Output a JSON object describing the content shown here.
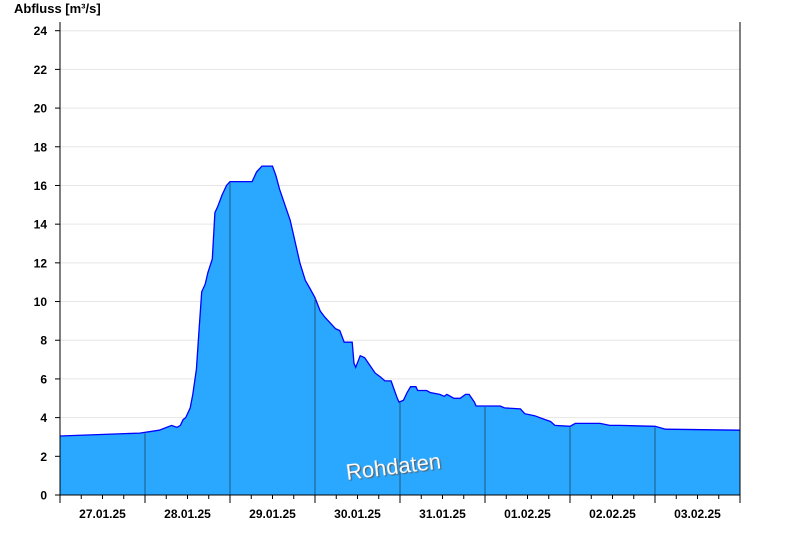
{
  "chart_data": {
    "type": "area",
    "ylabel": "Abfluss [m³/s]",
    "ylim": [
      0,
      24.45
    ],
    "yticks": [
      0,
      2,
      4,
      6,
      8,
      10,
      12,
      14,
      16,
      18,
      20,
      22,
      24
    ],
    "xlim": [
      "2025-01-27T00:00",
      "2025-02-04T00:00"
    ],
    "xtick_labels": [
      "27.01.25",
      "28.01.25",
      "29.01.25",
      "30.01.25",
      "31.01.25",
      "01.02.25",
      "02.02.25",
      "03.02.25"
    ],
    "grid": "horizontal",
    "watermark": "Rohdaten",
    "colors": {
      "fill": "#2aa8ff",
      "line": "#0000ff",
      "grid": "#e6e6e6",
      "day_line": "#1f5a80"
    },
    "x": [
      "2025-01-27T00:00",
      "2025-01-27T22:30",
      "2025-01-28T04:00",
      "2025-01-28T07:30",
      "2025-01-28T09:00",
      "2025-01-28T10:00",
      "2025-01-28T10:45",
      "2025-01-28T11:30",
      "2025-01-28T12:45",
      "2025-01-28T13:30",
      "2025-01-28T14:30",
      "2025-01-28T15:15",
      "2025-01-28T16:00",
      "2025-01-28T17:00",
      "2025-01-28T17:45",
      "2025-01-28T19:00",
      "2025-01-28T19:45",
      "2025-01-28T20:30",
      "2025-01-28T21:45",
      "2025-01-28T23:00",
      "2025-01-29T00:00",
      "2025-01-29T06:15",
      "2025-01-29T07:30",
      "2025-01-29T09:00",
      "2025-01-29T12:00",
      "2025-01-29T13:00",
      "2025-01-29T14:00",
      "2025-01-29T15:30",
      "2025-01-29T17:00",
      "2025-01-29T18:30",
      "2025-01-29T19:45",
      "2025-01-29T21:15",
      "2025-01-29T22:30",
      "2025-01-30T00:00",
      "2025-01-30T01:30",
      "2025-01-30T02:45",
      "2025-01-30T04:15",
      "2025-01-30T05:45",
      "2025-01-30T07:00",
      "2025-01-30T08:15",
      "2025-01-30T10:30",
      "2025-01-30T11:00",
      "2025-01-30T11:30",
      "2025-01-30T12:45",
      "2025-01-30T14:00",
      "2025-01-30T15:30",
      "2025-01-30T17:00",
      "2025-01-30T18:30",
      "2025-01-30T19:45",
      "2025-01-30T21:30",
      "2025-01-30T22:15",
      "2025-01-30T23:15",
      "2025-01-30T23:45",
      "2025-01-31T01:00",
      "2025-01-31T02:00",
      "2025-01-31T03:00",
      "2025-01-31T04:30",
      "2025-01-31T05:00",
      "2025-01-31T07:30",
      "2025-01-31T08:30",
      "2025-01-31T11:15",
      "2025-01-31T12:30",
      "2025-01-31T13:15",
      "2025-01-31T15:15",
      "2025-01-31T17:00",
      "2025-01-31T18:30",
      "2025-01-31T19:30",
      "2025-01-31T21:00",
      "2025-01-31T21:30",
      "2025-02-01T04:15",
      "2025-02-01T05:30",
      "2025-02-01T10:00",
      "2025-02-01T11:15",
      "2025-02-01T14:00",
      "2025-02-01T17:00",
      "2025-02-01T18:30",
      "2025-02-01T19:45",
      "2025-02-02T00:00",
      "2025-02-02T01:30",
      "2025-02-02T08:30",
      "2025-02-02T11:15",
      "2025-02-02T14:00",
      "2025-02-03T00:00",
      "2025-02-03T03:00",
      "2025-02-04T00:00"
    ],
    "y": [
      3.05,
      3.2,
      3.35,
      3.6,
      3.5,
      3.6,
      3.9,
      4.0,
      4.5,
      5.2,
      6.5,
      8.5,
      10.5,
      10.9,
      11.5,
      12.2,
      14.6,
      14.9,
      15.5,
      16.0,
      16.2,
      16.2,
      16.7,
      17.0,
      17.0,
      16.5,
      15.8,
      15.0,
      14.2,
      13.0,
      12.0,
      11.1,
      10.7,
      10.2,
      9.5,
      9.2,
      8.9,
      8.6,
      8.5,
      7.9,
      7.9,
      6.8,
      6.6,
      7.2,
      7.1,
      6.7,
      6.3,
      6.1,
      5.9,
      5.9,
      5.5,
      5.0,
      4.8,
      4.9,
      5.3,
      5.6,
      5.6,
      5.4,
      5.4,
      5.3,
      5.2,
      5.1,
      5.2,
      5.0,
      5.0,
      5.2,
      5.2,
      4.8,
      4.6,
      4.6,
      4.5,
      4.45,
      4.2,
      4.1,
      3.9,
      3.8,
      3.6,
      3.55,
      3.7,
      3.7,
      3.6,
      3.6,
      3.55,
      3.4,
      3.35
    ]
  }
}
